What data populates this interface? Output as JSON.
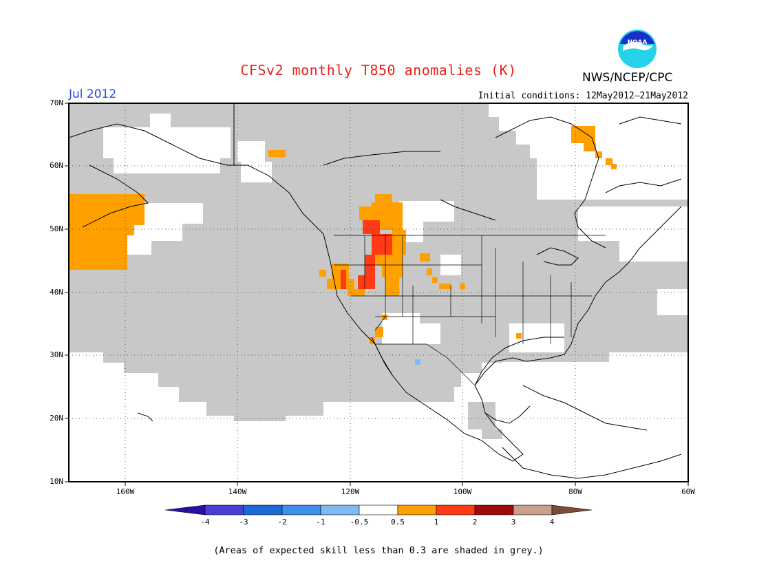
{
  "title": "CFSv2 monthly T850 anomalies (K)",
  "organization": "NWS/NCEP/CPC",
  "logo_text": "NOAA",
  "period": "Jul 2012",
  "initial_conditions": "Initial conditions: 12May2012–21May2012",
  "lat_labels": [
    "70N",
    "60N",
    "50N",
    "40N",
    "30N",
    "20N",
    "10N"
  ],
  "lon_labels": [
    "160W",
    "140W",
    "120W",
    "100W",
    "80W",
    "60W"
  ],
  "colorbar": {
    "labels": [
      "-4",
      "-3",
      "-2",
      "-1",
      "-0.5",
      "0.5",
      "1",
      "2",
      "3",
      "4"
    ],
    "colors": [
      "#2a0fa6",
      "#4a3ed8",
      "#1c6ad6",
      "#3f8eec",
      "#7fbaf0",
      "#ffffff",
      "#ffa000",
      "#ff3a14",
      "#a00a0a",
      "#c9a08e",
      "#7a4c3a"
    ]
  },
  "colors": {
    "no_skill_grey": "#c8c8c8",
    "anom_0_5_to_1": "#ffa000",
    "anom_1_to_2": "#ff3a14",
    "anom_neg": "#7fbaf0"
  },
  "footnote": "(Areas of expected skill less than 0.3 are shaded in grey.)"
}
